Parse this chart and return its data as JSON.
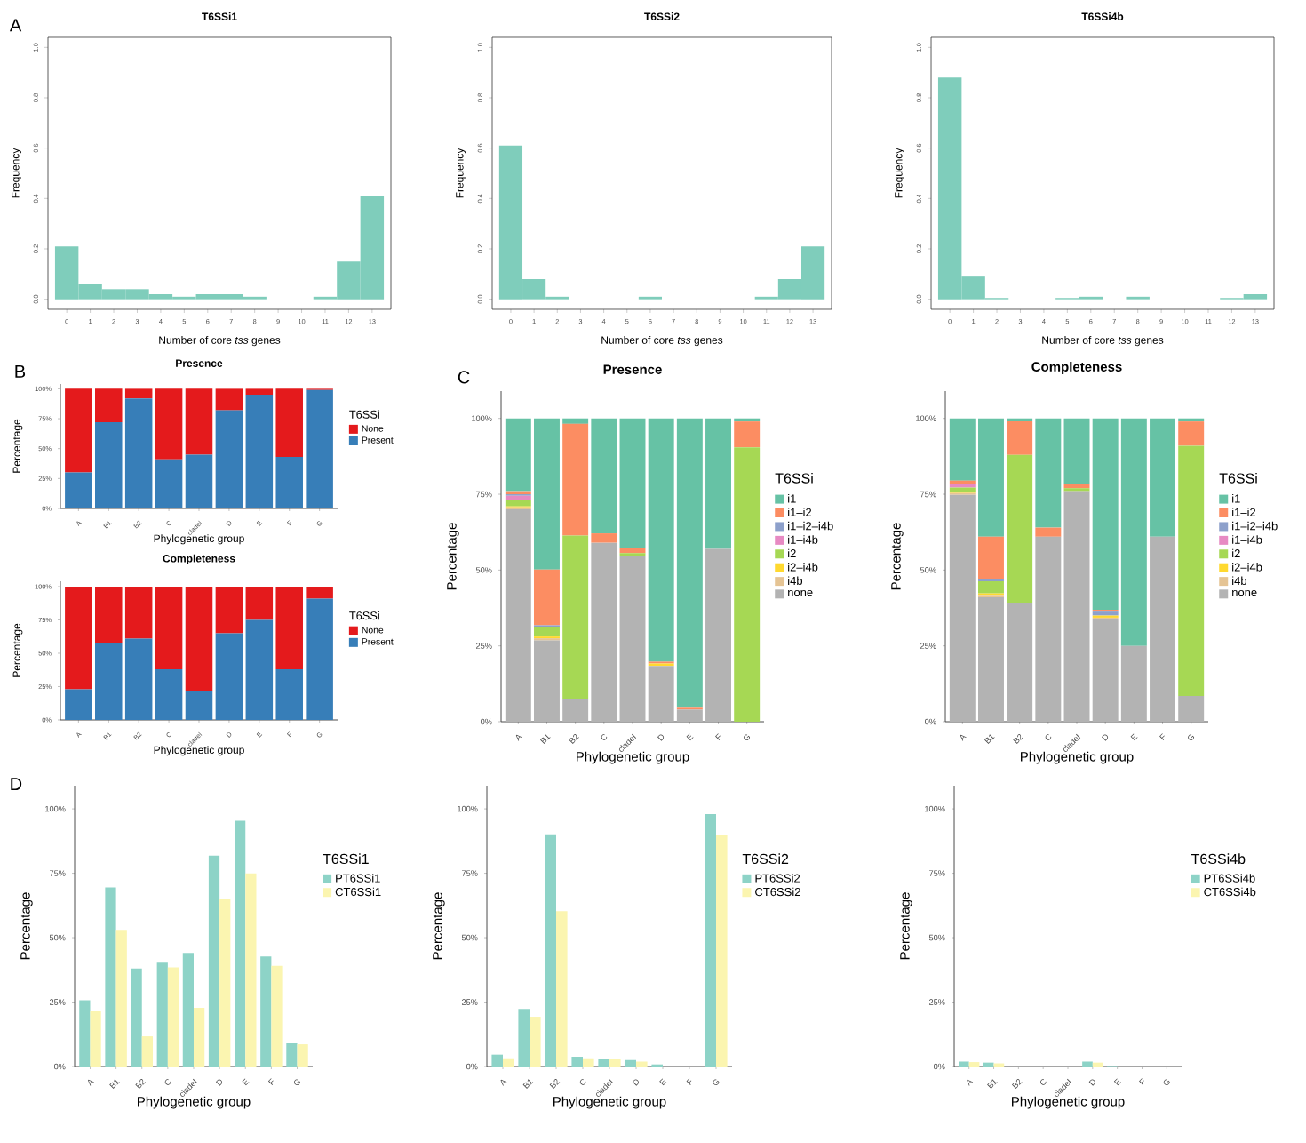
{
  "chart_data": [
    {
      "type": "histogram",
      "title": "T6SSi1",
      "xlabel": "Number of core *tss* genes",
      "ylabel": "Frequency",
      "annotations": [
        "A"
      ],
      "color": "#7fcdbb",
      "bins": [
        -0.5,
        0.5,
        1.5,
        2.5,
        3.5,
        4.5,
        5.5,
        6.5,
        7.5,
        8.5,
        9.5,
        10.5,
        11.5,
        12.5,
        13.5
      ],
      "values": [
        0.21,
        0.06,
        0.04,
        0.04,
        0.02,
        0.01,
        0.02,
        0.02,
        0.01,
        0,
        0,
        0.01,
        0.15,
        0.41
      ],
      "xlim": [
        -0.8,
        13.8
      ],
      "xticks": [
        0,
        1,
        2,
        3,
        4,
        5,
        6,
        7,
        8,
        9,
        10,
        11,
        12,
        13
      ],
      "ylim": [
        -0.04,
        1.04
      ],
      "yticks": [
        {
          "value": 0,
          "label": "0.0"
        },
        {
          "value": 0.2,
          "label": "0.2"
        },
        {
          "value": 0.4,
          "label": "0.4"
        },
        {
          "value": 0.6,
          "label": "0.6"
        },
        {
          "value": 0.8,
          "label": "0.8"
        },
        {
          "value": 1,
          "label": "1.0"
        }
      ]
    },
    {
      "type": "histogram",
      "title": "T6SSi2",
      "xlabel": "Number of core *tss* genes",
      "ylabel": "Frequency",
      "color": "#7fcdbb",
      "bins": [
        -0.5,
        0.5,
        1.5,
        2.5,
        3.5,
        4.5,
        5.5,
        6.5,
        7.5,
        8.5,
        9.5,
        10.5,
        11.5,
        12.5,
        13.5
      ],
      "values": [
        0.61,
        0.08,
        0.01,
        0,
        0,
        0,
        0.01,
        0,
        0,
        0,
        0,
        0.01,
        0.08,
        0.21
      ],
      "xlim": [
        -0.8,
        13.8
      ],
      "xticks": [
        0,
        1,
        2,
        3,
        4,
        5,
        6,
        7,
        8,
        9,
        10,
        11,
        12,
        13
      ],
      "ylim": [
        -0.04,
        1.04
      ],
      "yticks": [
        {
          "value": 0,
          "label": "0.0"
        },
        {
          "value": 0.2,
          "label": "0.2"
        },
        {
          "value": 0.4,
          "label": "0.4"
        },
        {
          "value": 0.6,
          "label": "0.6"
        },
        {
          "value": 0.8,
          "label": "0.8"
        },
        {
          "value": 1,
          "label": "1.0"
        }
      ]
    },
    {
      "type": "histogram",
      "title": "T6SSi4b",
      "xlabel": "Number of core *tss* genes",
      "ylabel": "Frequency",
      "color": "#7fcdbb",
      "bins": [
        -0.5,
        0.5,
        1.5,
        2.5,
        3.5,
        4.5,
        5.5,
        6.5,
        7.5,
        8.5,
        9.5,
        10.5,
        11.5,
        12.5,
        13.5
      ],
      "values": [
        0.88,
        0.09,
        0.005,
        0,
        0,
        0.005,
        0.01,
        0,
        0.01,
        0,
        0,
        0,
        0.005,
        0.02
      ],
      "xlim": [
        -0.8,
        13.8
      ],
      "xticks": [
        0,
        1,
        2,
        3,
        4,
        5,
        6,
        7,
        8,
        9,
        10,
        11,
        12,
        13
      ],
      "ylim": [
        -0.04,
        1.04
      ],
      "yticks": [
        {
          "value": 0,
          "label": "0.0"
        },
        {
          "value": 0.2,
          "label": "0.2"
        },
        {
          "value": 0.4,
          "label": "0.4"
        },
        {
          "value": 0.6,
          "label": "0.6"
        },
        {
          "value": 0.8,
          "label": "0.8"
        },
        {
          "value": 1,
          "label": "1.0"
        }
      ]
    },
    {
      "type": "bar",
      "stacked": true,
      "title": "Presence",
      "xlabel": "Phylogenetic group",
      "ylabel": "Percentage",
      "legend": "right",
      "legend_title": "T6SSi",
      "annotations": [
        "B"
      ],
      "categories": [
        "A",
        "B1",
        "B2",
        "C",
        "cladeI",
        "D",
        "E",
        "F",
        "G"
      ],
      "series": [
        {
          "name": "Present",
          "color": "#377eb8",
          "values": [
            30,
            72,
            92,
            41,
            45,
            82,
            95,
            43,
            99
          ]
        },
        {
          "name": "None",
          "color": "#e41a1c",
          "values": [
            70,
            28,
            8,
            59,
            55,
            18,
            5,
            57,
            1
          ]
        }
      ],
      "ylim": [
        0,
        104
      ],
      "yticks": [
        {
          "value": 0,
          "label": "0%"
        },
        {
          "value": 25,
          "label": "25%"
        },
        {
          "value": 50,
          "label": "50%"
        },
        {
          "value": 75,
          "label": "75%"
        },
        {
          "value": 100,
          "label": "100%"
        }
      ]
    },
    {
      "type": "bar",
      "stacked": true,
      "title": "Completeness",
      "xlabel": "Phylogenetic group",
      "ylabel": "Percentage",
      "legend": "right",
      "legend_title": "T6SSi",
      "categories": [
        "A",
        "B1",
        "B2",
        "C",
        "cladeI",
        "D",
        "E",
        "F",
        "G"
      ],
      "series": [
        {
          "name": "Present",
          "color": "#377eb8",
          "values": [
            23,
            58,
            61,
            38,
            22,
            65,
            75,
            38,
            91
          ]
        },
        {
          "name": "None",
          "color": "#e41a1c",
          "values": [
            77,
            42,
            39,
            62,
            78,
            35,
            25,
            62,
            9
          ]
        }
      ],
      "ylim": [
        0,
        104
      ],
      "yticks": [
        {
          "value": 0,
          "label": "0%"
        },
        {
          "value": 25,
          "label": "25%"
        },
        {
          "value": 50,
          "label": "50%"
        },
        {
          "value": 75,
          "label": "75%"
        },
        {
          "value": 100,
          "label": "100%"
        }
      ]
    },
    {
      "type": "bar",
      "stacked": true,
      "title": "Presence",
      "xlabel": "Phylogenetic group",
      "ylabel": "Percentage",
      "legend": "right",
      "legend_title": "T6SSi",
      "annotations": [
        "C"
      ],
      "categories": [
        "A",
        "B1",
        "B2",
        "C",
        "cladeI",
        "D",
        "E",
        "F",
        "G"
      ],
      "series": [
        {
          "name": "none",
          "color": "#b3b3b3",
          "values": [
            70,
            26.8,
            7.4,
            59,
            54.8,
            18.4,
            4,
            57,
            0
          ]
        },
        {
          "name": "i4b",
          "color": "#e5c494",
          "values": [
            0.7,
            0.7,
            0,
            0,
            0,
            0,
            0,
            0,
            0
          ]
        },
        {
          "name": "i2–i4b",
          "color": "#ffd92f",
          "values": [
            0.3,
            0.6,
            0,
            0,
            0,
            0.8,
            0,
            0,
            0
          ]
        },
        {
          "name": "i2",
          "color": "#a6d854",
          "values": [
            2,
            3,
            54,
            0,
            0.8,
            0,
            0,
            0,
            90.5
          ]
        },
        {
          "name": "i1–i4b",
          "color": "#e78ac3",
          "values": [
            1.5,
            0,
            0,
            0,
            0,
            0,
            0,
            0,
            0
          ]
        },
        {
          "name": "i1–i2–i4b",
          "color": "#8da0cb",
          "values": [
            0.5,
            0.7,
            0,
            0,
            0,
            0,
            0,
            0,
            0
          ]
        },
        {
          "name": "i1–i2",
          "color": "#fc8d62",
          "values": [
            1,
            18.4,
            36.8,
            3.1,
            1.7,
            0.6,
            0.6,
            0,
            8.5
          ]
        },
        {
          "name": "i1",
          "color": "#66c2a5",
          "values": [
            24,
            49.8,
            1.8,
            37.9,
            42.7,
            80.2,
            95.4,
            43,
            1
          ]
        }
      ],
      "ylim": [
        0,
        109
      ],
      "yticks": [
        {
          "value": 0,
          "label": "0%"
        },
        {
          "value": 25,
          "label": "25%"
        },
        {
          "value": 50,
          "label": "50%"
        },
        {
          "value": 75,
          "label": "75%"
        },
        {
          "value": 100,
          "label": "100%"
        }
      ]
    },
    {
      "type": "bar",
      "stacked": true,
      "title": "Completeness",
      "xlabel": "Phylogenetic group",
      "ylabel": "Percentage",
      "legend": "right",
      "legend_title": "T6SSi",
      "categories": [
        "A",
        "B1",
        "B2",
        "C",
        "cladeI",
        "D",
        "E",
        "F",
        "G"
      ],
      "series": [
        {
          "name": "none",
          "color": "#b3b3b3",
          "values": [
            74.8,
            41,
            39,
            61,
            76,
            34,
            25,
            61,
            8.5
          ]
        },
        {
          "name": "i4b",
          "color": "#e5c494",
          "values": [
            0.6,
            0.5,
            0,
            0,
            0,
            0.3,
            0,
            0,
            0
          ]
        },
        {
          "name": "i2–i4b",
          "color": "#ffd92f",
          "values": [
            0.3,
            0.8,
            0,
            0,
            0,
            0.7,
            0,
            0,
            0
          ]
        },
        {
          "name": "i2",
          "color": "#a6d854",
          "values": [
            1.5,
            4,
            49,
            0,
            1,
            0,
            0,
            0,
            82.5
          ]
        },
        {
          "name": "i1–i4b",
          "color": "#e78ac3",
          "values": [
            1.3,
            0,
            0,
            0,
            0,
            0,
            0,
            0,
            0
          ]
        },
        {
          "name": "i1–i2–i4b",
          "color": "#8da0cb",
          "values": [
            0,
            0.7,
            0,
            0,
            0,
            1.3,
            0,
            0,
            0
          ]
        },
        {
          "name": "i1–i2",
          "color": "#fc8d62",
          "values": [
            1,
            14,
            11,
            3,
            1.5,
            0.6,
            0,
            0,
            8
          ]
        },
        {
          "name": "i1",
          "color": "#66c2a5",
          "values": [
            20.5,
            39,
            1,
            36,
            21.5,
            63.1,
            75,
            39,
            1
          ]
        }
      ],
      "ylim": [
        0,
        109
      ],
      "yticks": [
        {
          "value": 0,
          "label": "0%"
        },
        {
          "value": 25,
          "label": "25%"
        },
        {
          "value": 50,
          "label": "50%"
        },
        {
          "value": 75,
          "label": "75%"
        },
        {
          "value": 100,
          "label": "100%"
        }
      ]
    },
    {
      "type": "bar",
      "xlabel": "Phylogenetic group",
      "ylabel": "Percentage",
      "legend": "right",
      "legend_title": "T6SSi1",
      "annotations": [
        "D"
      ],
      "categories": [
        "A",
        "B1",
        "B2",
        "C",
        "cladeI",
        "D",
        "E",
        "F",
        "G"
      ],
      "series": [
        {
          "name": "PT6SSi1",
          "color": "#8dd3c7",
          "values": [
            25.7,
            69.5,
            38,
            40.6,
            44.1,
            81.8,
            95.4,
            42.7,
            9.2
          ]
        },
        {
          "name": "CT6SSi1",
          "color": "#fbf5b0",
          "values": [
            21.5,
            53,
            11.7,
            38.5,
            22.8,
            64.9,
            74.9,
            39.1,
            8.6
          ]
        }
      ],
      "ylim": [
        0,
        109
      ],
      "yticks": [
        {
          "value": 0,
          "label": "0%"
        },
        {
          "value": 25,
          "label": "25%"
        },
        {
          "value": 50,
          "label": "50%"
        },
        {
          "value": 75,
          "label": "75%"
        },
        {
          "value": 100,
          "label": "100%"
        }
      ]
    },
    {
      "type": "bar",
      "xlabel": "Phylogenetic group",
      "ylabel": "Percentage",
      "legend": "right",
      "legend_title": "T6SSi2",
      "categories": [
        "A",
        "B1",
        "B2",
        "C",
        "cladeI",
        "D",
        "E",
        "F",
        "G"
      ],
      "series": [
        {
          "name": "PT6SSi2",
          "color": "#8dd3c7",
          "values": [
            4.6,
            22.3,
            90.1,
            3.8,
            2.9,
            2.5,
            0.8,
            0,
            98
          ]
        },
        {
          "name": "CT6SSi2",
          "color": "#fbf5b0",
          "values": [
            3.2,
            19.3,
            60.3,
            3.2,
            2.9,
            1.9,
            0,
            0,
            90
          ]
        }
      ],
      "ylim": [
        0,
        109
      ],
      "yticks": [
        {
          "value": 0,
          "label": "0%"
        },
        {
          "value": 25,
          "label": "25%"
        },
        {
          "value": 50,
          "label": "50%"
        },
        {
          "value": 75,
          "label": "75%"
        },
        {
          "value": 100,
          "label": "100%"
        }
      ]
    },
    {
      "type": "bar",
      "xlabel": "Phylogenetic group",
      "ylabel": "Percentage",
      "legend": "right",
      "legend_title": "T6SSi4b",
      "categories": [
        "A",
        "B1",
        "B2",
        "C",
        "cladeI",
        "D",
        "E",
        "F",
        "G"
      ],
      "series": [
        {
          "name": "PT6SSi4b",
          "color": "#8dd3c7",
          "values": [
            1.9,
            1.5,
            0,
            0,
            0,
            1.9,
            0.2,
            0,
            0
          ]
        },
        {
          "name": "CT6SSi4b",
          "color": "#fbf5b0",
          "values": [
            1.7,
            1.2,
            0,
            0,
            0,
            1.5,
            0,
            0,
            0
          ]
        }
      ],
      "ylim": [
        0,
        109
      ],
      "yticks": [
        {
          "value": 0,
          "label": "0%"
        },
        {
          "value": 25,
          "label": "25%"
        },
        {
          "value": 50,
          "label": "50%"
        },
        {
          "value": 75,
          "label": "75%"
        },
        {
          "value": 100,
          "label": "100%"
        }
      ]
    }
  ]
}
